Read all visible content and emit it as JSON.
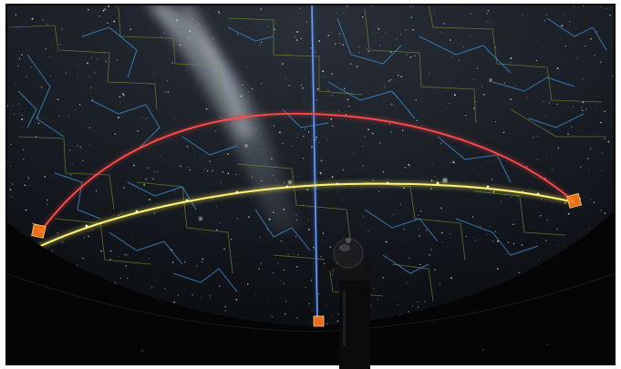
{
  "scene": {
    "subject": "planetarium-dome",
    "colors": {
      "sky_dark": "#0e1116",
      "sky_mid": "#1d232b",
      "milky_way": "#c9d2dc",
      "constellation_lines": "#3f86c8",
      "constellation_boundaries": "#6f8f3a",
      "meridian": "#3a6fe0",
      "ecliptic": "#f2e24a",
      "celestial_equator": "#e2383a",
      "marker": "#ff7a1a",
      "dome_floor": "#050505"
    },
    "markers": [
      {
        "id": "west",
        "glyph": ""
      },
      {
        "id": "east",
        "glyph": ""
      },
      {
        "id": "south",
        "glyph": ""
      }
    ],
    "icons": [
      "projector-icon"
    ]
  }
}
